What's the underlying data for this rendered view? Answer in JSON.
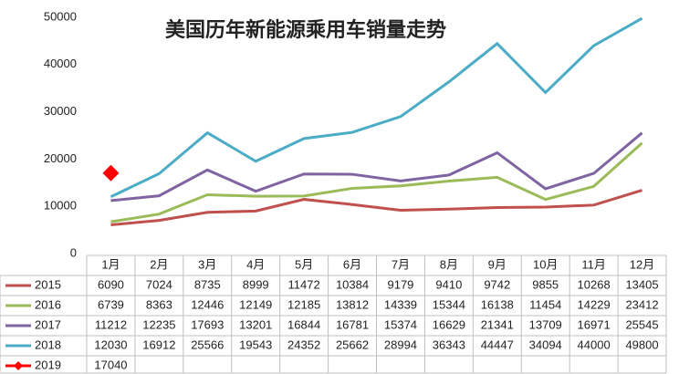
{
  "chart_data": {
    "type": "line",
    "title": "美国历年新能源乘用车销量走势",
    "categories": [
      "1月",
      "2月",
      "3月",
      "4月",
      "5月",
      "6月",
      "7月",
      "8月",
      "9月",
      "10月",
      "11月",
      "12月"
    ],
    "ylim": [
      0,
      50000
    ],
    "yticks": [
      0,
      10000,
      20000,
      30000,
      40000,
      50000
    ],
    "grid": false,
    "series": [
      {
        "name": "2015",
        "color": "#c0504d",
        "values": [
          6090,
          7024,
          8735,
          8999,
          11472,
          10384,
          9179,
          9410,
          9742,
          9855,
          10268,
          13405
        ]
      },
      {
        "name": "2016",
        "color": "#9bbb59",
        "values": [
          6739,
          8363,
          12446,
          12149,
          12185,
          13812,
          14339,
          15344,
          16138,
          11454,
          14229,
          23412
        ]
      },
      {
        "name": "2017",
        "color": "#8064a2",
        "values": [
          11212,
          12235,
          17693,
          13201,
          16844,
          16781,
          15374,
          16629,
          21341,
          13709,
          16971,
          25545
        ]
      },
      {
        "name": "2018",
        "color": "#4bacc6",
        "values": [
          12030,
          16912,
          25566,
          19543,
          24352,
          25662,
          28994,
          36343,
          44447,
          34094,
          44000,
          49800
        ]
      },
      {
        "name": "2019",
        "color": "#ff0000",
        "marker": "diamond",
        "values": [
          17040,
          null,
          null,
          null,
          null,
          null,
          null,
          null,
          null,
          null,
          null,
          null
        ]
      }
    ]
  }
}
